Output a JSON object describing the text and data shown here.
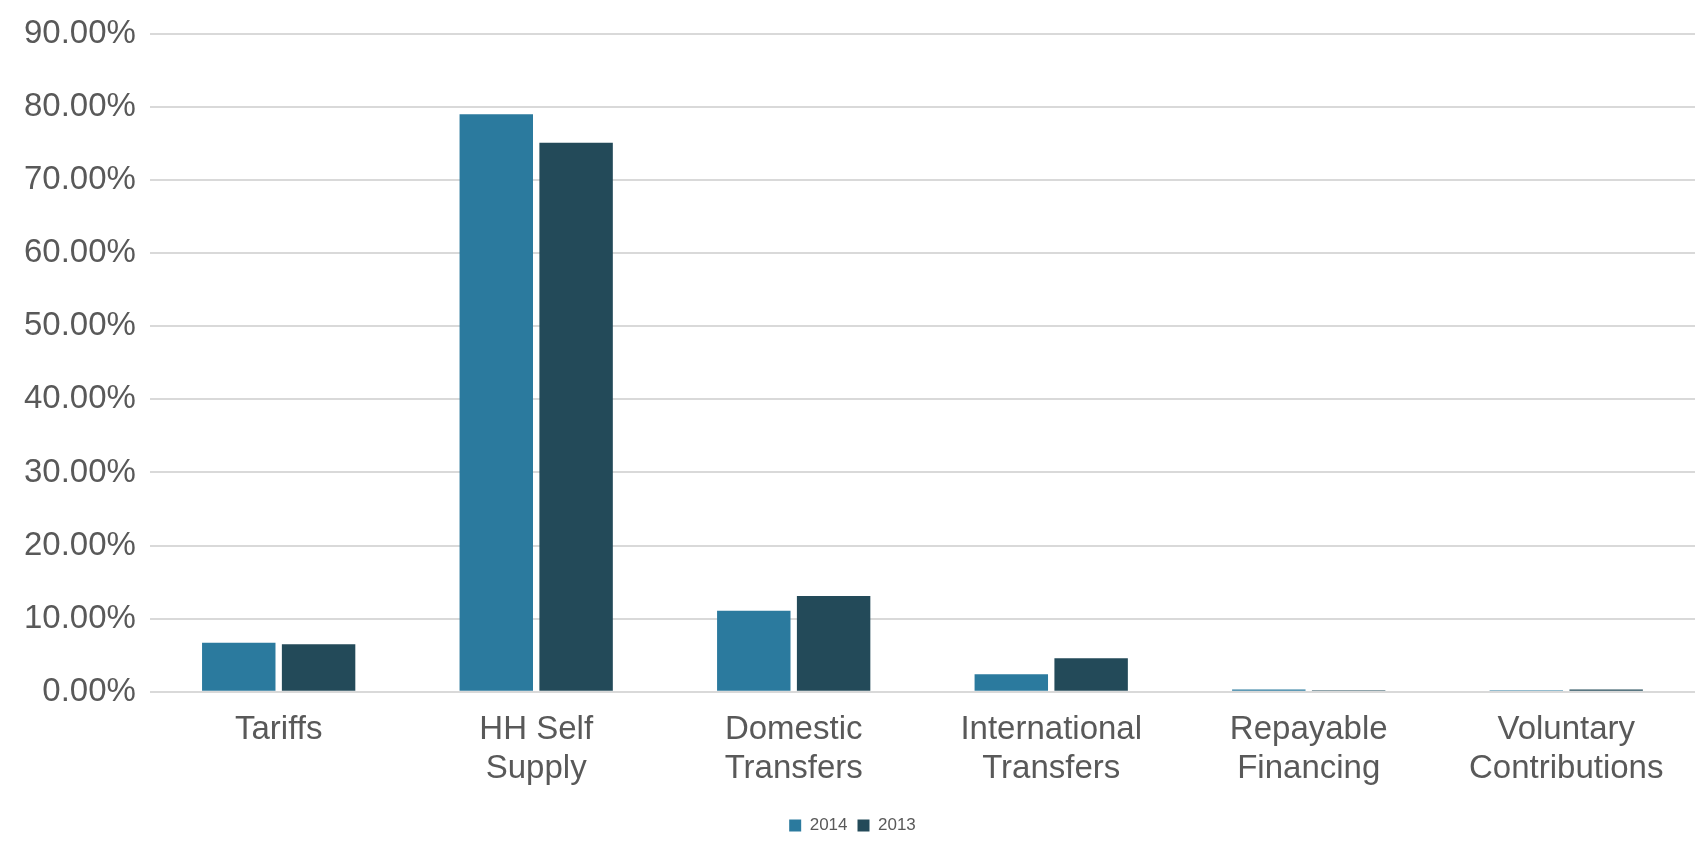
{
  "chart_data": {
    "type": "bar",
    "categories": [
      "Tariffs",
      "HH Self Supply",
      "Domestic Transfers",
      "International Transfers",
      "Repayable Financing",
      "Voluntary Contributions"
    ],
    "series": [
      {
        "name": "2014",
        "color": "#2b7a9e",
        "values": [
          6.7,
          79.0,
          11.1,
          2.4,
          0.3,
          0.2
        ]
      },
      {
        "name": "2013",
        "color": "#234a59",
        "values": [
          6.5,
          75.1,
          13.1,
          4.6,
          0.2,
          0.3
        ]
      }
    ],
    "ylim": [
      0,
      90
    ],
    "yticks": [
      {
        "value": 0,
        "label": "0.00%"
      },
      {
        "value": 10,
        "label": "10.00%"
      },
      {
        "value": 20,
        "label": "20.00%"
      },
      {
        "value": 30,
        "label": "30.00%"
      },
      {
        "value": 40,
        "label": "40.00%"
      },
      {
        "value": 50,
        "label": "50.00%"
      },
      {
        "value": 60,
        "label": "60.00%"
      },
      {
        "value": 70,
        "label": "70.00%"
      },
      {
        "value": 80,
        "label": "80.00%"
      },
      {
        "value": 90,
        "label": "90.00%"
      }
    ],
    "grid": "y",
    "legend": "bottom"
  }
}
